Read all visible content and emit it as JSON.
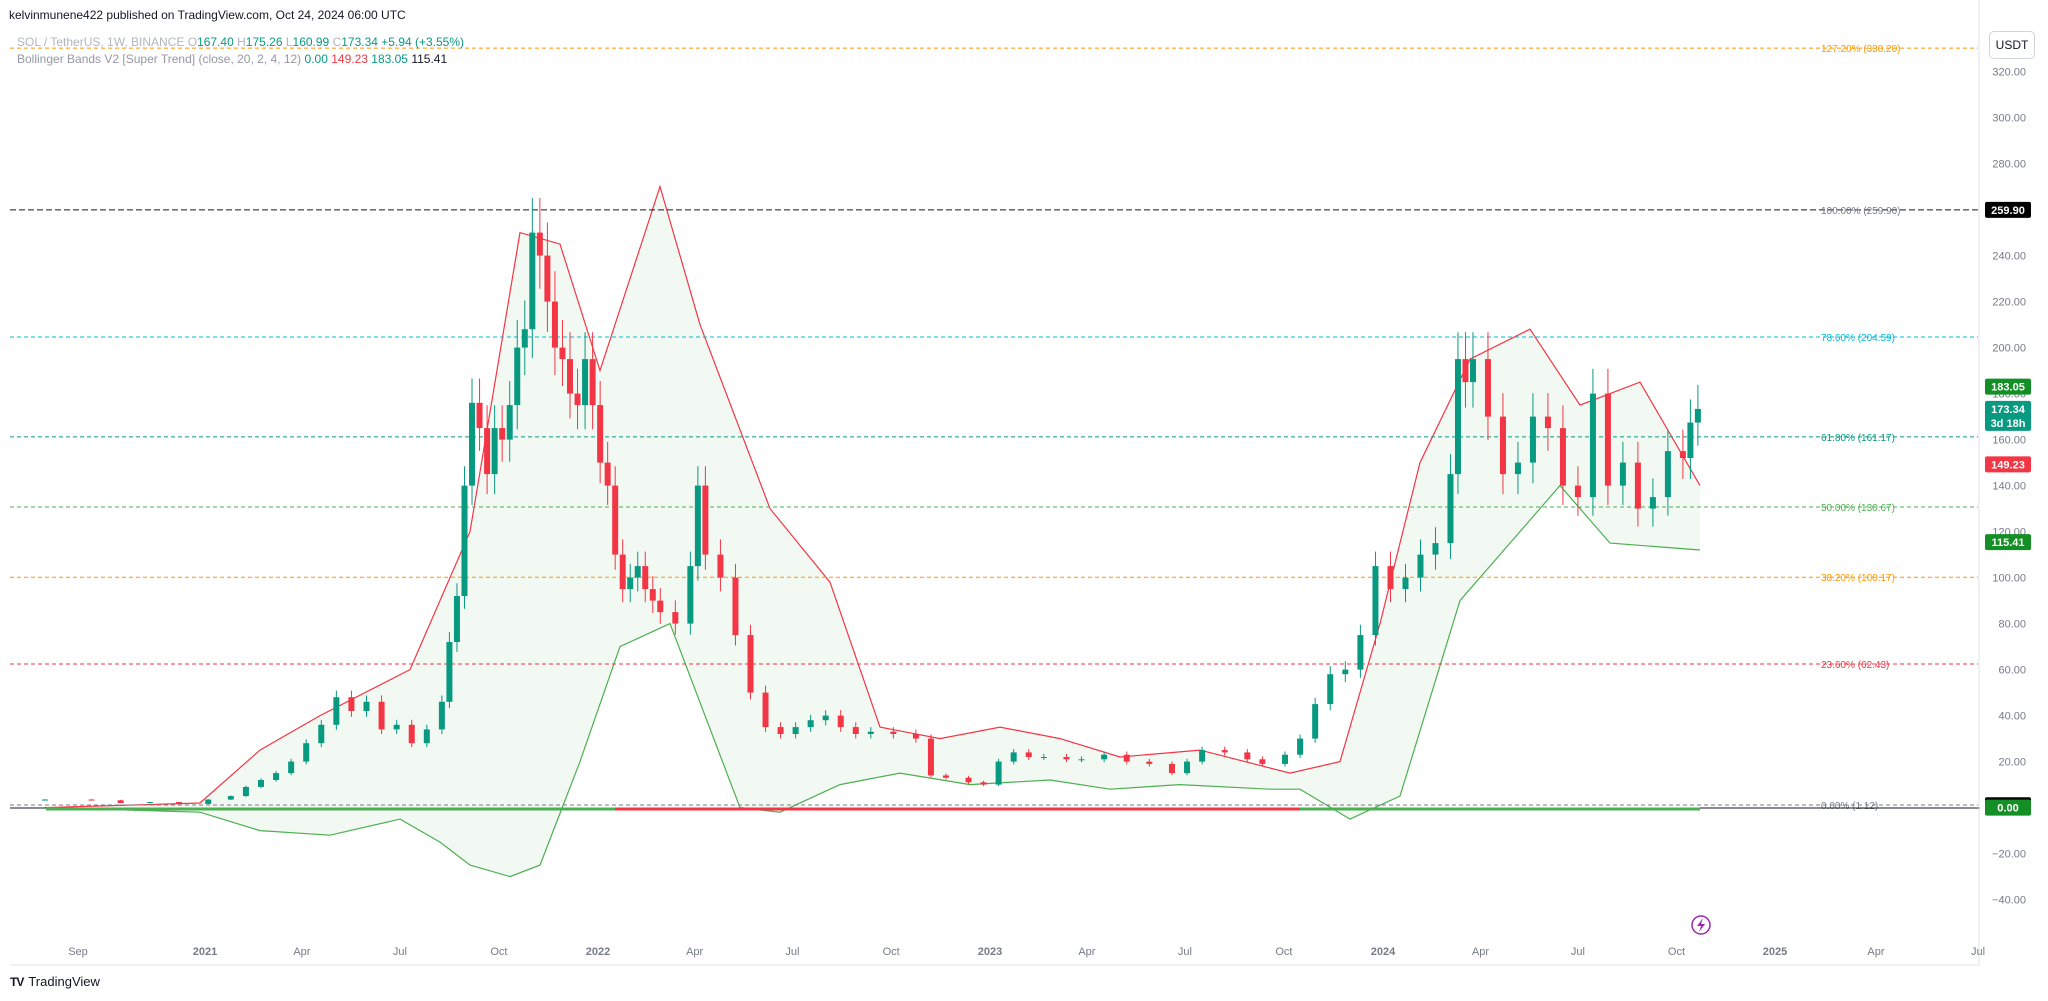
{
  "header": {
    "published": "kelvinmunene422 published on TradingView.com, Oct 24, 2024 06:00 UTC",
    "symbol": "SOL / TetherUS, 1W, BINANCE",
    "o_label": "O",
    "o_value": "167.40",
    "h_label": "H",
    "h_value": "175.26",
    "l_label": "L",
    "l_value": "160.99",
    "c_label": "C",
    "c_value": "173.34",
    "change": "+5.94 (+3.55%)",
    "indicator": "Bollinger Bands V2 [Super Trend] (close, 20, 2, 4, 12)",
    "ind_v1": "0.00",
    "ind_v2": "149.23",
    "ind_v3": "183.05",
    "ind_v4": "115.41"
  },
  "currency_button": "USDT",
  "footer": {
    "brand": "TradingView",
    "logo": "tradingview-logo-icon"
  },
  "colors": {
    "up": "#089981",
    "down": "#f23645",
    "band_up": "#4caf50",
    "band_down": "#f23645"
  },
  "chart_data": {
    "type": "candlestick",
    "symbol": "SOL / TetherUS",
    "interval": "1W",
    "exchange": "BINANCE",
    "ylim": [
      -45,
      330
    ],
    "y_ticks": [
      -40,
      -20,
      20,
      40,
      60,
      80,
      100,
      120,
      140,
      160,
      180,
      200,
      220,
      240,
      260,
      280,
      300,
      320
    ],
    "y_tick_labels": [
      "−40.00",
      "−20.00",
      "20.00",
      "40.00",
      "60.00",
      "80.00",
      "100.00",
      "120.00",
      "140.00",
      "160.00",
      "180.00",
      "200.00",
      "220.00",
      "240.00",
      "260.00",
      "280.00",
      "300.00",
      "320.00"
    ],
    "x_ticks": [
      {
        "label": "Sep",
        "date": "2020-09-01",
        "bold": false
      },
      {
        "label": "2021",
        "date": "2021-01-01",
        "bold": true
      },
      {
        "label": "Apr",
        "date": "2021-04-01",
        "bold": false
      },
      {
        "label": "Jul",
        "date": "2021-07-01",
        "bold": false
      },
      {
        "label": "Oct",
        "date": "2021-10-01",
        "bold": false
      },
      {
        "label": "2022",
        "date": "2022-01-01",
        "bold": true
      },
      {
        "label": "Apr",
        "date": "2022-04-01",
        "bold": false
      },
      {
        "label": "Jul",
        "date": "2022-07-01",
        "bold": false
      },
      {
        "label": "Oct",
        "date": "2022-10-01",
        "bold": false
      },
      {
        "label": "2023",
        "date": "2023-01-01",
        "bold": true
      },
      {
        "label": "Apr",
        "date": "2023-04-01",
        "bold": false
      },
      {
        "label": "Jul",
        "date": "2023-07-01",
        "bold": false
      },
      {
        "label": "Oct",
        "date": "2023-10-01",
        "bold": false
      },
      {
        "label": "2024",
        "date": "2024-01-01",
        "bold": true
      },
      {
        "label": "Apr",
        "date": "2024-04-01",
        "bold": false
      },
      {
        "label": "Jul",
        "date": "2024-07-01",
        "bold": false
      },
      {
        "label": "Oct",
        "date": "2024-10-01",
        "bold": false
      },
      {
        "label": "2025",
        "date": "2025-01-01",
        "bold": true
      },
      {
        "label": "Apr",
        "date": "2025-04-01",
        "bold": false
      },
      {
        "label": "Jul",
        "date": "2025-07-01",
        "bold": false
      }
    ],
    "candle_closes": [
      {
        "date": "2020-08-17",
        "close": 3.5
      },
      {
        "date": "2020-09-14",
        "close": 3.2
      },
      {
        "date": "2020-10-12",
        "close": 2.0
      },
      {
        "date": "2020-11-09",
        "close": 2.4
      },
      {
        "date": "2020-12-07",
        "close": 1.6
      },
      {
        "date": "2021-01-04",
        "close": 3.5
      },
      {
        "date": "2021-01-25",
        "close": 5
      },
      {
        "date": "2021-02-08",
        "close": 9
      },
      {
        "date": "2021-02-22",
        "close": 12
      },
      {
        "date": "2021-03-08",
        "close": 15
      },
      {
        "date": "2021-03-22",
        "close": 20
      },
      {
        "date": "2021-04-05",
        "close": 28
      },
      {
        "date": "2021-04-19",
        "close": 36
      },
      {
        "date": "2021-05-03",
        "close": 48
      },
      {
        "date": "2021-05-17",
        "close": 42
      },
      {
        "date": "2021-05-31",
        "close": 46
      },
      {
        "date": "2021-06-14",
        "close": 34
      },
      {
        "date": "2021-06-28",
        "close": 36
      },
      {
        "date": "2021-07-12",
        "close": 28
      },
      {
        "date": "2021-07-26",
        "close": 34
      },
      {
        "date": "2021-08-09",
        "close": 46
      },
      {
        "date": "2021-08-16",
        "close": 72
      },
      {
        "date": "2021-08-23",
        "close": 92
      },
      {
        "date": "2021-08-30",
        "close": 140
      },
      {
        "date": "2021-09-06",
        "close": 176
      },
      {
        "date": "2021-09-13",
        "close": 165
      },
      {
        "date": "2021-09-20",
        "close": 145
      },
      {
        "date": "2021-09-27",
        "close": 165
      },
      {
        "date": "2021-10-04",
        "close": 160
      },
      {
        "date": "2021-10-11",
        "close": 175
      },
      {
        "date": "2021-10-18",
        "close": 200
      },
      {
        "date": "2021-10-25",
        "close": 208
      },
      {
        "date": "2021-11-01",
        "close": 250
      },
      {
        "date": "2021-11-08",
        "close": 240
      },
      {
        "date": "2021-11-15",
        "close": 220
      },
      {
        "date": "2021-11-22",
        "close": 200
      },
      {
        "date": "2021-11-29",
        "close": 195
      },
      {
        "date": "2021-12-06",
        "close": 180
      },
      {
        "date": "2021-12-13",
        "close": 175
      },
      {
        "date": "2021-12-20",
        "close": 195
      },
      {
        "date": "2021-12-27",
        "close": 175
      },
      {
        "date": "2022-01-03",
        "close": 150
      },
      {
        "date": "2022-01-10",
        "close": 140
      },
      {
        "date": "2022-01-17",
        "close": 110
      },
      {
        "date": "2022-01-24",
        "close": 95
      },
      {
        "date": "2022-01-31",
        "close": 100
      },
      {
        "date": "2022-02-07",
        "close": 105
      },
      {
        "date": "2022-02-14",
        "close": 95
      },
      {
        "date": "2022-02-21",
        "close": 90
      },
      {
        "date": "2022-02-28",
        "close": 85
      },
      {
        "date": "2022-03-14",
        "close": 80
      },
      {
        "date": "2022-03-28",
        "close": 105
      },
      {
        "date": "2022-04-04",
        "close": 140
      },
      {
        "date": "2022-04-11",
        "close": 110
      },
      {
        "date": "2022-04-25",
        "close": 100
      },
      {
        "date": "2022-05-09",
        "close": 75
      },
      {
        "date": "2022-05-23",
        "close": 50
      },
      {
        "date": "2022-06-06",
        "close": 35
      },
      {
        "date": "2022-06-20",
        "close": 32
      },
      {
        "date": "2022-07-04",
        "close": 35
      },
      {
        "date": "2022-07-18",
        "close": 38
      },
      {
        "date": "2022-08-01",
        "close": 40
      },
      {
        "date": "2022-08-15",
        "close": 35
      },
      {
        "date": "2022-08-29",
        "close": 32
      },
      {
        "date": "2022-09-12",
        "close": 33
      },
      {
        "date": "2022-10-03",
        "close": 32
      },
      {
        "date": "2022-10-24",
        "close": 30
      },
      {
        "date": "2022-11-07",
        "close": 14
      },
      {
        "date": "2022-11-21",
        "close": 13
      },
      {
        "date": "2022-12-12",
        "close": 11
      },
      {
        "date": "2022-12-26",
        "close": 10
      },
      {
        "date": "2023-01-09",
        "close": 20
      },
      {
        "date": "2023-01-23",
        "close": 24
      },
      {
        "date": "2023-02-06",
        "close": 22
      },
      {
        "date": "2023-02-20",
        "close": 22
      },
      {
        "date": "2023-03-13",
        "close": 21
      },
      {
        "date": "2023-03-27",
        "close": 21
      },
      {
        "date": "2023-04-17",
        "close": 23
      },
      {
        "date": "2023-05-08",
        "close": 20
      },
      {
        "date": "2023-05-29",
        "close": 19
      },
      {
        "date": "2023-06-19",
        "close": 15
      },
      {
        "date": "2023-07-03",
        "close": 20
      },
      {
        "date": "2023-07-17",
        "close": 25
      },
      {
        "date": "2023-08-07",
        "close": 24
      },
      {
        "date": "2023-08-28",
        "close": 21
      },
      {
        "date": "2023-09-11",
        "close": 19
      },
      {
        "date": "2023-10-02",
        "close": 23
      },
      {
        "date": "2023-10-16",
        "close": 30
      },
      {
        "date": "2023-10-30",
        "close": 45
      },
      {
        "date": "2023-11-13",
        "close": 58
      },
      {
        "date": "2023-11-27",
        "close": 60
      },
      {
        "date": "2023-12-11",
        "close": 75
      },
      {
        "date": "2023-12-25",
        "close": 105
      },
      {
        "date": "2024-01-08",
        "close": 95
      },
      {
        "date": "2024-01-22",
        "close": 100
      },
      {
        "date": "2024-02-05",
        "close": 110
      },
      {
        "date": "2024-02-19",
        "close": 115
      },
      {
        "date": "2024-03-04",
        "close": 145
      },
      {
        "date": "2024-03-11",
        "close": 195
      },
      {
        "date": "2024-03-18",
        "close": 185
      },
      {
        "date": "2024-03-25",
        "close": 195
      },
      {
        "date": "2024-04-08",
        "close": 170
      },
      {
        "date": "2024-04-22",
        "close": 145
      },
      {
        "date": "2024-05-06",
        "close": 150
      },
      {
        "date": "2024-05-20",
        "close": 170
      },
      {
        "date": "2024-06-03",
        "close": 165
      },
      {
        "date": "2024-06-17",
        "close": 140
      },
      {
        "date": "2024-07-01",
        "close": 135
      },
      {
        "date": "2024-07-15",
        "close": 180
      },
      {
        "date": "2024-07-29",
        "close": 140
      },
      {
        "date": "2024-08-12",
        "close": 150
      },
      {
        "date": "2024-08-26",
        "close": 130
      },
      {
        "date": "2024-09-09",
        "close": 135
      },
      {
        "date": "2024-09-23",
        "close": 155
      },
      {
        "date": "2024-10-07",
        "close": 152
      },
      {
        "date": "2024-10-14",
        "close": 167.4
      },
      {
        "date": "2024-10-21",
        "close": 173.34
      }
    ],
    "fib_levels": [
      {
        "label": "127.20% (330.20)",
        "value": 330.2,
        "color": "#ff9800"
      },
      {
        "label": "100.00% (259.90)",
        "value": 259.9,
        "color": "#787b86"
      },
      {
        "label": "78.60% (204.59)",
        "value": 204.59,
        "color": "#00bcd4"
      },
      {
        "label": "61.80% (161.17)",
        "value": 161.17,
        "color": "#089981"
      },
      {
        "label": "50.00% (130.67)",
        "value": 130.67,
        "color": "#4caf50"
      },
      {
        "label": "38.20% (100.17)",
        "value": 100.17,
        "color": "#ff9800"
      },
      {
        "label": "23.60% (62.43)",
        "value": 62.43,
        "color": "#f23645"
      },
      {
        "label": "0.00% (1.12)",
        "value": 1.12,
        "color": "#787b86"
      }
    ],
    "price_badges": [
      {
        "label": "259.90",
        "value": 259.9,
        "bg": "#000000"
      },
      {
        "label": "183.05",
        "value": 183.05,
        "bg": "#138f25"
      },
      {
        "label": "173.34",
        "sub": "3d 18h",
        "value": 173.34,
        "bg": "#089981"
      },
      {
        "label": "149.23",
        "value": 149.23,
        "bg": "#f23645"
      },
      {
        "label": "115.41",
        "value": 115.41,
        "bg": "#138f25"
      },
      {
        "label": "1.03",
        "value": 1.03,
        "bg": "#000000"
      },
      {
        "label": "0.00",
        "value": 0.0,
        "bg": "#138f25"
      }
    ]
  }
}
